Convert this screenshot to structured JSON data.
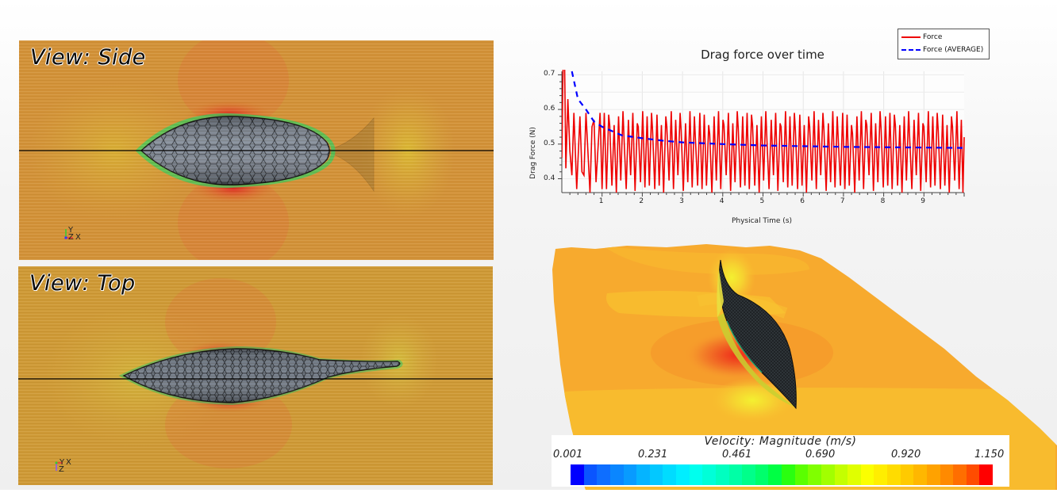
{
  "views": {
    "side": {
      "title": "View: Side",
      "triad": {
        "up": "Y",
        "left": "Z",
        "right": "X"
      }
    },
    "top": {
      "title": "View: Top",
      "triad": {
        "up": "",
        "left": "Y",
        "right": "X",
        "down": "Z"
      }
    }
  },
  "chart": {
    "title": "Drag force over time",
    "xlabel": "Physical Time (s)",
    "ylabel": "Drag Force (N)",
    "legend": [
      {
        "label": "Force",
        "color": "#ee0000",
        "style": "solid"
      },
      {
        "label": "Force (AVERAGE)",
        "color": "#0000ff",
        "style": "dashed"
      }
    ],
    "xticks": [
      "1",
      "2",
      "3",
      "4",
      "5",
      "6",
      "7",
      "8",
      "9"
    ],
    "yticks": [
      "0.7",
      "0.6",
      "0.5",
      "0.4"
    ]
  },
  "chart_data": {
    "type": "line",
    "title": "Drag force over time",
    "xlabel": "Physical Time (s)",
    "ylabel": "Drag Force (N)",
    "xlim": [
      0,
      10
    ],
    "ylim": [
      0.36,
      0.71
    ],
    "grid": true,
    "legend_position": "top-right (outside)",
    "series": [
      {
        "name": "Force",
        "style": "solid",
        "color": "#ee0000",
        "description": "Oscillating signal ~9 cycles/s between ~0.37 and ~0.59 N after initial transient peaking above 0.7 N near t=0",
        "x": [
          0.0,
          0.05,
          0.1,
          0.15,
          0.2,
          0.3,
          0.4,
          0.5,
          0.6,
          0.7,
          0.8,
          0.9,
          1.0,
          1.5,
          2.0,
          3.0,
          4.0,
          5.0,
          6.0,
          7.0,
          8.0,
          9.0,
          10.0
        ],
        "values": [
          0.46,
          0.71,
          0.43,
          0.63,
          0.41,
          0.59,
          0.37,
          0.58,
          0.42,
          0.59,
          0.36,
          0.59,
          0.37,
          0.59,
          0.36,
          0.59,
          0.37,
          0.59,
          0.38,
          0.59,
          0.37,
          0.59,
          0.52
        ],
        "envelope": {
          "min": 0.36,
          "max": 0.595
        }
      },
      {
        "name": "Force (AVERAGE)",
        "style": "dashed",
        "color": "#0000ff",
        "x": [
          0.25,
          0.4,
          0.6,
          0.8,
          1.0,
          1.5,
          2.0,
          2.5,
          3.0,
          4.0,
          5.0,
          6.0,
          7.0,
          8.0,
          9.0,
          10.0
        ],
        "values": [
          0.71,
          0.63,
          0.6,
          0.565,
          0.55,
          0.525,
          0.517,
          0.51,
          0.505,
          0.5,
          0.496,
          0.494,
          0.492,
          0.491,
          0.49,
          0.489
        ]
      }
    ]
  },
  "colorbar": {
    "title": "Velocity: Magnitude (m/s)",
    "ticks": [
      "0.001",
      "0.231",
      "0.461",
      "0.690",
      "0.920",
      "1.150"
    ],
    "min": 0.001,
    "max": 1.15,
    "colors": [
      "#0000ff",
      "#0a55ff",
      "#0e6eff",
      "#0a86ff",
      "#089bff",
      "#05b4ff",
      "#03c8ff",
      "#00dcff",
      "#00eeff",
      "#00ffee",
      "#00ffd8",
      "#00ffc0",
      "#00ffa6",
      "#00ff8a",
      "#00ff6c",
      "#00ff44",
      "#2aff10",
      "#5aff00",
      "#80ff00",
      "#a2ff00",
      "#c4ff00",
      "#e0ff00",
      "#fbff00",
      "#ffee00",
      "#ffdc00",
      "#ffca00",
      "#ffb700",
      "#ffa200",
      "#ff8a00",
      "#ff6e00",
      "#ff4c00",
      "#ff0000"
    ]
  }
}
